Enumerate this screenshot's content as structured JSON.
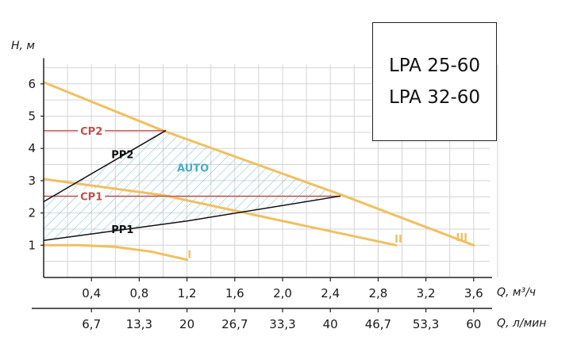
{
  "chart_data": {
    "type": "line",
    "xlabel": "Q, м³/ч",
    "xlabel2": "Q, л/мин",
    "ylabel": "H, м",
    "xlim": [
      0,
      3.6
    ],
    "ylim": [
      0,
      6.6
    ],
    "x_ticks": [
      "0,4",
      "0,8",
      "1,2",
      "1,6",
      "2,0",
      "2,4",
      "2,8",
      "3,2",
      "3,6"
    ],
    "x_ticks2": [
      "6,7",
      "13,3",
      "20",
      "26,7",
      "33,3",
      "40",
      "46,7",
      "53,3",
      "60"
    ],
    "y_ticks": [
      "1",
      "2",
      "3",
      "4",
      "5",
      "6"
    ],
    "grid": true,
    "series": [
      {
        "name": "I",
        "color": "#f0c060",
        "points": [
          [
            0,
            1.0
          ],
          [
            0.3,
            1.0
          ],
          [
            0.6,
            0.95
          ],
          [
            0.9,
            0.8
          ],
          [
            1.2,
            0.55
          ]
        ]
      },
      {
        "name": "II",
        "color": "#f0c060",
        "points": [
          [
            0,
            3.05
          ],
          [
            1.0,
            2.55
          ],
          [
            2.0,
            1.75
          ],
          [
            2.95,
            1.0
          ]
        ]
      },
      {
        "name": "III",
        "color": "#f0c060",
        "points": [
          [
            0,
            6.05
          ],
          [
            1.0,
            4.55
          ],
          [
            2.5,
            2.55
          ],
          [
            3.6,
            1.0
          ]
        ]
      },
      {
        "name": "CP2",
        "color": "#c0504d",
        "points": [
          [
            0,
            4.55
          ],
          [
            1.02,
            4.55
          ]
        ]
      },
      {
        "name": "CP1",
        "color": "#c0504d",
        "points": [
          [
            0,
            2.52
          ],
          [
            2.48,
            2.52
          ]
        ]
      },
      {
        "name": "PP2",
        "color": "#111111",
        "points": [
          [
            0,
            2.35
          ],
          [
            1.02,
            4.55
          ]
        ]
      },
      {
        "name": "PP1",
        "color": "#111111",
        "points": [
          [
            0,
            1.15
          ],
          [
            1.2,
            1.75
          ],
          [
            2.48,
            2.52
          ]
        ]
      }
    ],
    "auto_region": {
      "name": "AUTO",
      "color": "#4bacc6",
      "polygon": [
        [
          0,
          2.35
        ],
        [
          1.02,
          4.55
        ],
        [
          2.48,
          2.52
        ],
        [
          1.2,
          1.75
        ],
        [
          0,
          1.15
        ]
      ]
    },
    "annotations": [
      {
        "text": "CP2",
        "x": 0.4,
        "y": 4.55,
        "color": "#c0504d"
      },
      {
        "text": "CP1",
        "x": 0.4,
        "y": 2.52,
        "color": "#c0504d"
      },
      {
        "text": "PP2",
        "x": 0.66,
        "y": 3.82,
        "color": "#111111"
      },
      {
        "text": "PP1",
        "x": 0.66,
        "y": 1.5,
        "color": "#111111"
      },
      {
        "text": "AUTO",
        "x": 1.25,
        "y": 3.4,
        "color": "#4bacc6"
      },
      {
        "text": "I",
        "x": 1.22,
        "y": 0.72,
        "color": "#f0c060"
      },
      {
        "text": "II",
        "x": 2.97,
        "y": 1.2,
        "color": "#f0c060"
      },
      {
        "text": "III",
        "x": 3.5,
        "y": 1.25,
        "color": "#f0c060"
      }
    ]
  },
  "models": [
    "LPA 25-60",
    "LPA 32-60"
  ]
}
